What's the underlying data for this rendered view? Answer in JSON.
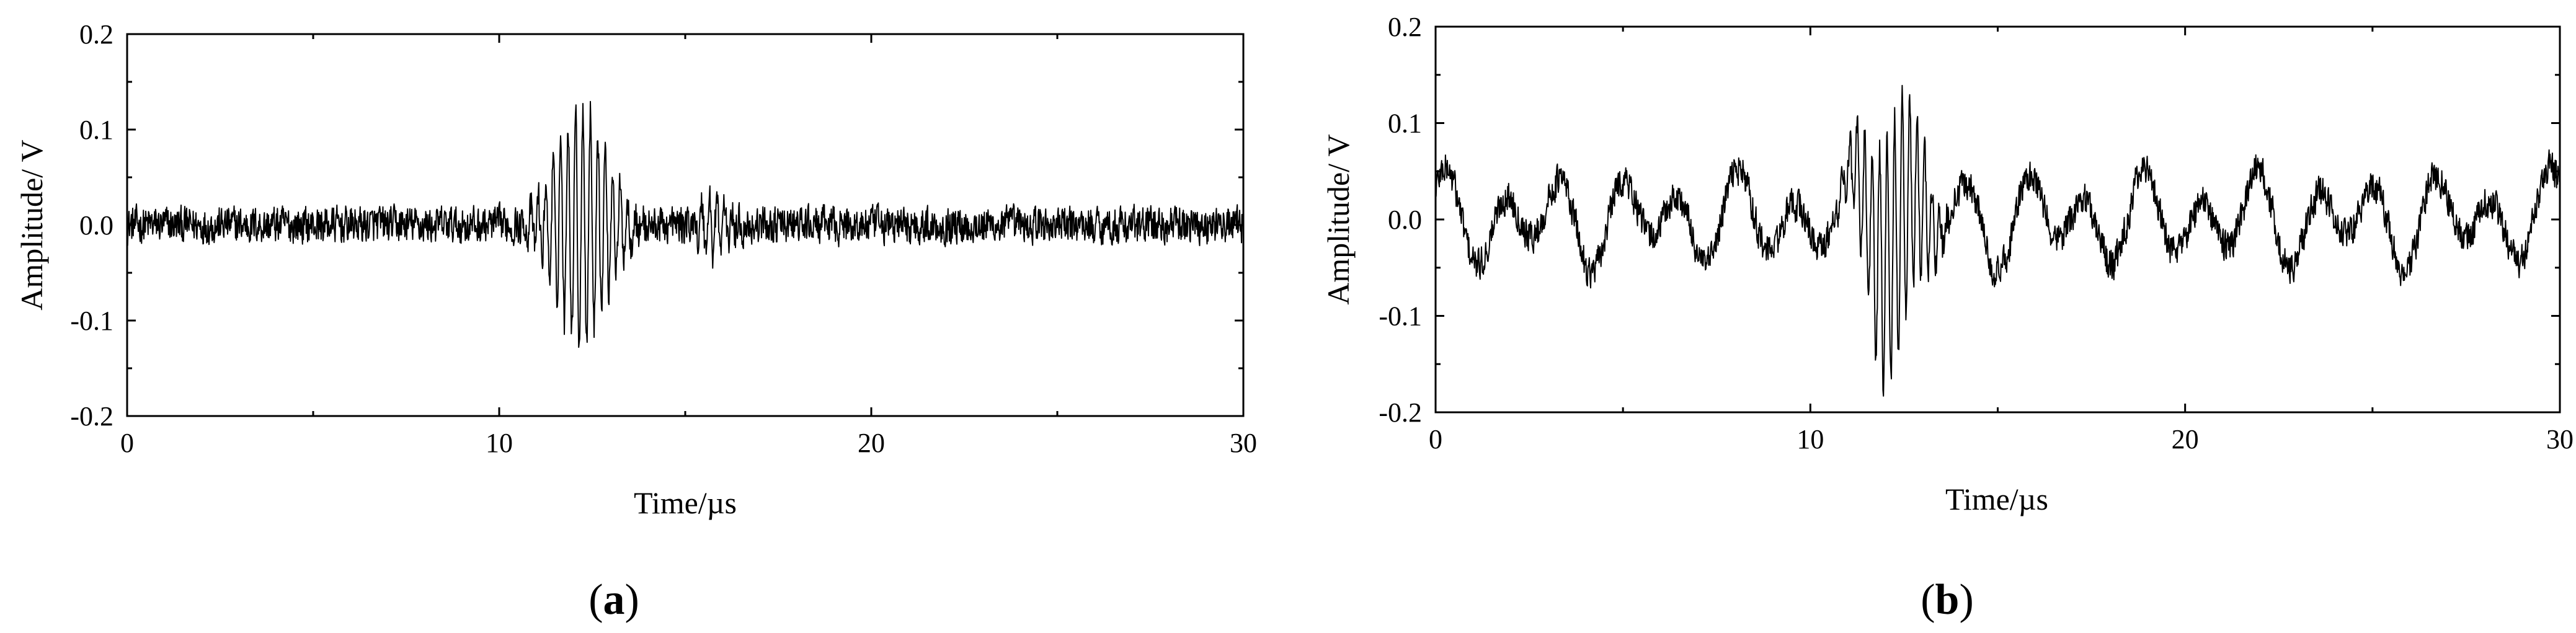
{
  "chart_data": [
    {
      "type": "line",
      "panel_label": "a",
      "title": "",
      "xlabel": "Time/µs",
      "ylabel": "Amplitude/ V",
      "xlim": [
        0,
        30
      ],
      "ylim": [
        -0.2,
        0.2
      ],
      "x_ticks": [
        0,
        10,
        20,
        30
      ],
      "x_tick_labels": [
        "0",
        "10",
        "20",
        "30"
      ],
      "y_ticks": [
        -0.2,
        -0.1,
        0.0,
        0.1,
        0.2
      ],
      "y_tick_labels": [
        "-0.2",
        "-0.1",
        "0.0",
        "0.1",
        "0.2"
      ],
      "grid": false,
      "series": [
        {
          "signal_description": "noisy ultrasonic echo",
          "noise_amplitude": 0.018,
          "packets": [
            {
              "center": 12.2,
              "width": 0.95,
              "amplitude": 0.125,
              "period": 0.2
            },
            {
              "center": 15.8,
              "width": 0.6,
              "amplitude": 0.03,
              "period": 0.2
            }
          ],
          "drift": []
        }
      ]
    },
    {
      "type": "line",
      "panel_label": "b",
      "title": "",
      "xlabel": "Time/µs",
      "ylabel": "Amplitude/ V",
      "xlim": [
        0,
        30
      ],
      "ylim": [
        -0.2,
        0.2
      ],
      "x_ticks": [
        0,
        10,
        20,
        30
      ],
      "x_tick_labels": [
        "0",
        "10",
        "20",
        "30"
      ],
      "y_ticks": [
        -0.2,
        -0.1,
        0.0,
        0.1,
        0.2
      ],
      "y_tick_labels": [
        "-0.2",
        "-0.1",
        "0.0",
        "0.1",
        "0.2"
      ],
      "grid": false,
      "series": [
        {
          "signal_description": "noisy ultrasonic echo with low-frequency interference",
          "noise_amplitude": 0.016,
          "packets": [
            {
              "center": 12.2,
              "width": 0.95,
              "amplitude": 0.13,
              "period": 0.2
            }
          ],
          "drift": [
            {
              "amplitude": 0.035,
              "period": 1.55,
              "phase": 0.4
            },
            {
              "amplitude": 0.02,
              "period": 2.7,
              "phase": 1.3
            }
          ]
        }
      ]
    }
  ]
}
